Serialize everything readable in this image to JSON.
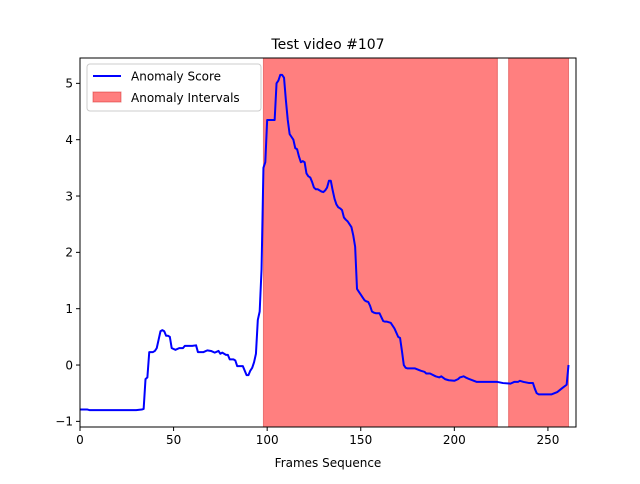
{
  "chart_data": {
    "type": "line",
    "title": "Test video #107",
    "xlabel": "Frames Sequence",
    "ylabel": "",
    "xlim": [
      0,
      265
    ],
    "ylim": [
      -1.1,
      5.45
    ],
    "xticks": [
      0,
      50,
      100,
      150,
      200,
      250
    ],
    "yticks": [
      -1,
      0,
      1,
      2,
      3,
      4,
      5
    ],
    "legend_position": "top-left",
    "colors": {
      "score": "#0000ff",
      "interval": "#ff7f7f",
      "interval_edge": "#d62728"
    },
    "legend": [
      {
        "name": "Anomaly Score",
        "kind": "line"
      },
      {
        "name": "Anomaly Intervals",
        "kind": "patch"
      }
    ],
    "intervals": [
      [
        98,
        223
      ],
      [
        229,
        261
      ]
    ],
    "series": [
      {
        "name": "Anomaly Score",
        "x": [
          0,
          4,
          5,
          30,
          33,
          34,
          35,
          36,
          37,
          39,
          40,
          41,
          42,
          43,
          44,
          45,
          46,
          47,
          48,
          49,
          51,
          53,
          55,
          56,
          60,
          62,
          63,
          66,
          68,
          70,
          72,
          74,
          75,
          76,
          78,
          79,
          80,
          82,
          83,
          84,
          86,
          87,
          88,
          89,
          90,
          91,
          92,
          93,
          94,
          95,
          96,
          97,
          98,
          99,
          100,
          101,
          102,
          104,
          105,
          106,
          107,
          108,
          109,
          110,
          111,
          112,
          113,
          114,
          115,
          116,
          117,
          118,
          119,
          120,
          121,
          122,
          123,
          124,
          125,
          126,
          127,
          128,
          129,
          130,
          131,
          132,
          133,
          134,
          135,
          136,
          137,
          138,
          139,
          140,
          141,
          142,
          143,
          144,
          145,
          146,
          147,
          148,
          149,
          150,
          151,
          152,
          153,
          154,
          155,
          156,
          157,
          158,
          160,
          162,
          163,
          164,
          166,
          168,
          170,
          171,
          172,
          173,
          174,
          175,
          176,
          177,
          178,
          179,
          182,
          184,
          185,
          187,
          190,
          192,
          193,
          195,
          197,
          200,
          202,
          203,
          205,
          206,
          208,
          212,
          215,
          220,
          222,
          223,
          226,
          230,
          232,
          234,
          235,
          237,
          240,
          242,
          243,
          244,
          245,
          246,
          250,
          252,
          255,
          258,
          260,
          261
        ],
        "values": [
          -0.79,
          -0.79,
          -0.8,
          -0.8,
          -0.79,
          -0.78,
          -0.25,
          -0.22,
          0.23,
          0.23,
          0.25,
          0.3,
          0.45,
          0.6,
          0.62,
          0.6,
          0.52,
          0.52,
          0.5,
          0.3,
          0.27,
          0.3,
          0.3,
          0.34,
          0.34,
          0.35,
          0.23,
          0.23,
          0.26,
          0.25,
          0.22,
          0.25,
          0.2,
          0.22,
          0.18,
          0.18,
          0.1,
          0.1,
          0.08,
          -0.02,
          -0.02,
          -0.02,
          -0.1,
          -0.18,
          -0.18,
          -0.1,
          -0.05,
          0.05,
          0.2,
          0.8,
          0.95,
          1.7,
          3.5,
          3.6,
          4.35,
          4.35,
          4.35,
          4.35,
          5.0,
          5.05,
          5.15,
          5.15,
          5.1,
          4.7,
          4.35,
          4.1,
          4.05,
          4.0,
          3.85,
          3.83,
          3.7,
          3.6,
          3.62,
          3.6,
          3.4,
          3.35,
          3.33,
          3.25,
          3.15,
          3.12,
          3.12,
          3.1,
          3.08,
          3.07,
          3.1,
          3.15,
          3.27,
          3.27,
          3.1,
          2.95,
          2.85,
          2.8,
          2.78,
          2.75,
          2.62,
          2.58,
          2.55,
          2.5,
          2.45,
          2.3,
          2.1,
          1.35,
          1.3,
          1.25,
          1.2,
          1.15,
          1.13,
          1.12,
          1.05,
          0.95,
          0.93,
          0.92,
          0.92,
          0.78,
          0.77,
          0.77,
          0.75,
          0.65,
          0.5,
          0.48,
          0.25,
          0.0,
          -0.05,
          -0.06,
          -0.06,
          -0.06,
          -0.06,
          -0.06,
          -0.1,
          -0.12,
          -0.15,
          -0.15,
          -0.2,
          -0.22,
          -0.2,
          -0.25,
          -0.27,
          -0.28,
          -0.25,
          -0.22,
          -0.2,
          -0.22,
          -0.25,
          -0.3,
          -0.3,
          -0.3,
          -0.3,
          -0.3,
          -0.32,
          -0.33,
          -0.3,
          -0.3,
          -0.28,
          -0.3,
          -0.32,
          -0.32,
          -0.42,
          -0.5,
          -0.52,
          -0.52,
          -0.52,
          -0.52,
          -0.48,
          -0.4,
          -0.35,
          0.0
        ]
      }
    ]
  }
}
